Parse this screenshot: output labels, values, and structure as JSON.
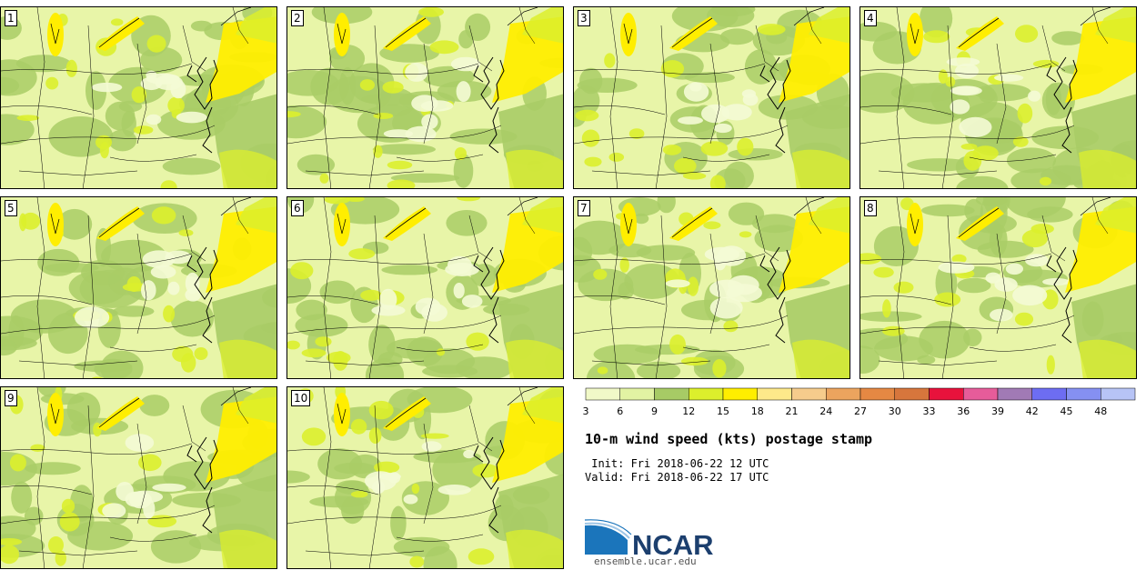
{
  "panels": [
    {
      "label": "1"
    },
    {
      "label": "2"
    },
    {
      "label": "3"
    },
    {
      "label": "4"
    },
    {
      "label": "5"
    },
    {
      "label": "6"
    },
    {
      "label": "7"
    },
    {
      "label": "8"
    },
    {
      "label": "9"
    },
    {
      "label": "10"
    }
  ],
  "colorbar": {
    "ticks": [
      "3",
      "6",
      "9",
      "12",
      "15",
      "18",
      "21",
      "24",
      "27",
      "30",
      "33",
      "36",
      "39",
      "42",
      "45",
      "48"
    ],
    "colors": [
      "#f1f9c8",
      "#e2f3a3",
      "#a7cb65",
      "#dcef2c",
      "#ffee00",
      "#fde98a",
      "#f6cc8c",
      "#eca45e",
      "#e58843",
      "#d7763c",
      "#e8123c",
      "#e65c9a",
      "#a17ab5",
      "#6d6df2",
      "#8590f2",
      "#b7c4f6"
    ]
  },
  "map_colors": {
    "light": "#e8f5a8",
    "medium": "#a9cc66",
    "bright": "#dcef2c",
    "strong": "#ffee00",
    "pale": "#f4fbd5",
    "line": "#000000"
  },
  "title": "10-m wind speed (kts) postage stamp",
  "init": " Init: Fri 2018-06-22 12 UTC",
  "valid": "Valid: Fri 2018-06-22 17 UTC",
  "logo": {
    "text": "NCAR",
    "url": "ensemble.ucar.edu",
    "colors": {
      "blue": "#1b75bb",
      "grey": "#4d4d4d",
      "dark": "#1c3f6e"
    }
  }
}
